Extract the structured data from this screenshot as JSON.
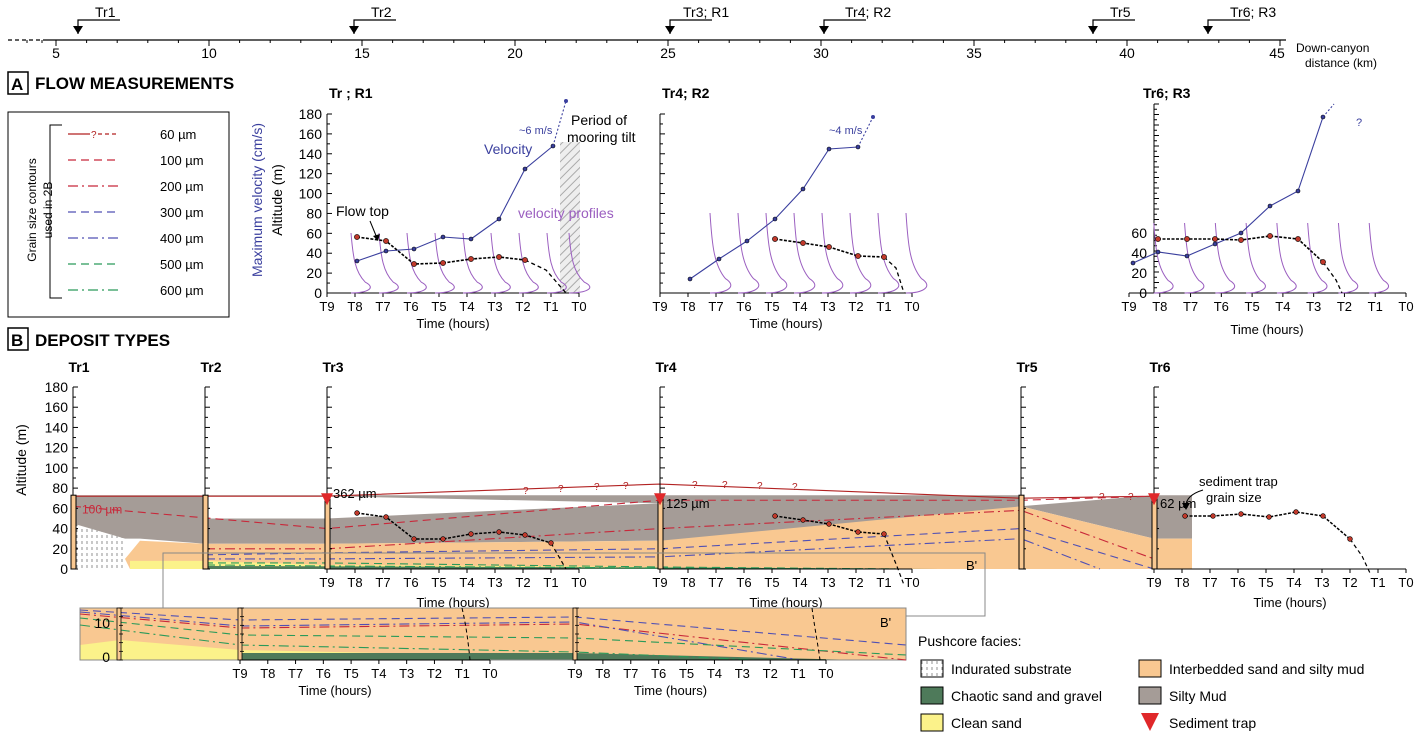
{
  "top_axis": {
    "ticks": [
      "5",
      "10",
      "15",
      "20",
      "25",
      "30",
      "35",
      "40",
      "45"
    ],
    "label_line1": "Down-canyon",
    "label_line2": "distance (km)",
    "transects": [
      "Tr1",
      "Tr2",
      "Tr3; R1",
      "Tr4; R2",
      "Tr5",
      "Tr6; R3"
    ]
  },
  "panel_a": {
    "letter": "A",
    "title": "FLOW MEASUREMENTS",
    "legend_title_line1": "Grain size contours",
    "legend_title_line2": "used in 2B",
    "legend": [
      {
        "label": "60 µm",
        "color": "#b22222",
        "dash": "",
        "marker": "?"
      },
      {
        "label": "100 µm",
        "color": "#c8283a",
        "dash": "8,5"
      },
      {
        "label": "200 µm",
        "color": "#c8283a",
        "dash": "10,4,2,4"
      },
      {
        "label": "300 µm",
        "color": "#5050b4",
        "dash": "8,5"
      },
      {
        "label": "400 µm",
        "color": "#5050b4",
        "dash": "10,4,2,4"
      },
      {
        "label": "500 µm",
        "color": "#2a9a5a",
        "dash": "8,5"
      },
      {
        "label": "600 µm",
        "color": "#2a9a5a",
        "dash": "10,4,2,4"
      }
    ],
    "y_label_velocity": "Maximum velocity (cm/s)",
    "y_label_altitude": "Altitude (m)",
    "y_ticks": [
      "0",
      "20",
      "40",
      "60",
      "80",
      "100",
      "120",
      "140",
      "160",
      "180"
    ],
    "time_ticks": [
      "T9",
      "T8",
      "T7",
      "T6",
      "T5",
      "T4",
      "T3",
      "T2",
      "T1",
      "T0"
    ],
    "x_label": "Time (hours)",
    "plots": [
      {
        "title": "Tr ; R1",
        "speed_note": "~6 m/s"
      },
      {
        "title": "Tr4; R2",
        "speed_note": "~4 m/s"
      },
      {
        "title": "Tr6; R3",
        "speed_note": "?"
      }
    ],
    "ann_velocity": "Velocity",
    "ann_period_line1": "Period of",
    "ann_period_line2": "mooring tilt",
    "ann_flow_top": "Flow top",
    "ann_profiles": "velocity profiles",
    "r3_y_ticks": [
      "0",
      "20",
      "40",
      "60"
    ]
  },
  "panel_b": {
    "letter": "B",
    "title": "DEPOSIT TYPES",
    "y_label": "Altitude (m)",
    "y_ticks": [
      "0",
      "20",
      "40",
      "60",
      "80",
      "100",
      "120",
      "140",
      "160",
      "180"
    ],
    "cores": [
      "Tr1",
      "Tr2",
      "Tr3",
      "Tr4",
      "Tr5",
      "Tr6"
    ],
    "trap_sizes": [
      "362 µm",
      "125 µm",
      "62 µm"
    ],
    "ann_100": "100 µm",
    "ann_trap_line1": "sediment trap",
    "ann_trap_line2": "grain size",
    "time_ticks": [
      "T9",
      "T8",
      "T7",
      "T6",
      "T5",
      "T4",
      "T3",
      "T2",
      "T1",
      "T0"
    ],
    "x_label": "Time (hours)",
    "inset_label": "B'",
    "inset_ticks": [
      "0",
      "10"
    ]
  },
  "facies_legend": {
    "title": "Pushcore facies:",
    "items": [
      {
        "label": "Indurated substrate",
        "color": "#ffffff"
      },
      {
        "label": "Chaotic sand and gravel",
        "color": "#4e7a5a"
      },
      {
        "label": "Clean sand",
        "color": "#fbf28a"
      },
      {
        "label": "Interbedded sand and silty mud",
        "color": "#f9c891"
      },
      {
        "label": "Silty Mud",
        "color": "#a59c97"
      },
      {
        "label": "Sediment trap",
        "color": "#e0282a"
      }
    ]
  },
  "colors": {
    "velocity": "#3a3f9e",
    "profile": "#9b5fc0",
    "flow_top_point": "#c0392b",
    "tilt_hatch": "#bbbbbb"
  }
}
